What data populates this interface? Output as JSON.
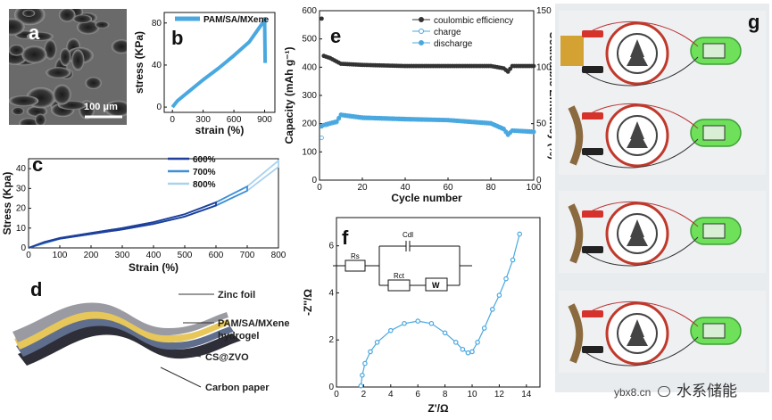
{
  "panels": {
    "a": {
      "label": "a",
      "scale_bar": "100 μm"
    },
    "b": {
      "label": "b"
    },
    "c": {
      "label": "c"
    },
    "d": {
      "label": "d",
      "layers": [
        "Zinc foil",
        "PAM/SA/MXene",
        "hydrogel",
        "CS@ZVO",
        "Carbon paper"
      ]
    },
    "e": {
      "label": "e"
    },
    "f": {
      "label": "f",
      "circuit": {
        "rs": "Rs",
        "cdl": "Cdl",
        "rct": "Rct",
        "w": "W"
      }
    },
    "g": {
      "label": "g",
      "watermark": "ybx8.cn",
      "wechat": "水系储能"
    }
  },
  "colors": {
    "blue": "#4aa8e0",
    "dark_blue": "#1f3f9a",
    "mid_blue": "#3e8fd6",
    "light_blue": "#a9d2ee",
    "grey": "#333333"
  },
  "chart_data": [
    {
      "id": "b",
      "type": "line",
      "title": "",
      "legend": [
        "PAM/SA/MXene"
      ],
      "xlabel": "strain (%)",
      "ylabel": "stress (KPa)",
      "xlim": [
        -80,
        1000
      ],
      "ylim": [
        -5,
        90
      ],
      "xticks": [
        0,
        300,
        600,
        900
      ],
      "yticks": [
        0,
        40,
        80
      ],
      "series": [
        {
          "name": "PAM/SA/MXene",
          "x": [
            0,
            50,
            150,
            300,
            450,
            600,
            750,
            880,
            900,
            905
          ],
          "y": [
            0,
            6,
            14,
            26,
            37,
            49,
            62,
            80,
            84,
            42
          ]
        }
      ]
    },
    {
      "id": "c",
      "type": "line",
      "xlabel": "Strain (%)",
      "ylabel": "Stress (Kpa)",
      "xlim": [
        0,
        800
      ],
      "ylim": [
        0,
        45
      ],
      "xticks": [
        0,
        100,
        200,
        300,
        400,
        500,
        600,
        700,
        800
      ],
      "yticks": [
        0,
        10,
        20,
        30,
        40
      ],
      "series": [
        {
          "name": "600%",
          "x": [
            0,
            50,
            100,
            200,
            300,
            400,
            500,
            600
          ],
          "y": [
            0,
            3,
            5,
            7.5,
            10,
            13,
            17,
            23
          ]
        },
        {
          "name": "700%",
          "x": [
            0,
            100,
            200,
            300,
            400,
            500,
            600,
            700
          ],
          "y": [
            0,
            5,
            7.5,
            10,
            13,
            17,
            23,
            31
          ]
        },
        {
          "name": "800%",
          "x": [
            0,
            100,
            200,
            300,
            400,
            500,
            600,
            700,
            800
          ],
          "y": [
            0,
            5,
            7.5,
            10,
            13,
            17,
            23,
            31,
            44
          ]
        }
      ]
    },
    {
      "id": "e",
      "type": "scatter",
      "xlabel": "Cycle number",
      "ylabel": "Capacity (mAh g⁻¹)",
      "y2label": "Coulombic Efficiency (%)",
      "xlim": [
        0,
        100
      ],
      "ylim": [
        0,
        600
      ],
      "y2lim": [
        0,
        150
      ],
      "xticks": [
        0,
        20,
        40,
        60,
        80,
        100
      ],
      "yticks": [
        0,
        100,
        200,
        300,
        400,
        500,
        600
      ],
      "y2ticks": [
        0,
        50,
        100,
        150
      ],
      "legend": [
        "coulombic efficiency",
        "charge",
        "discharge"
      ],
      "series": [
        {
          "name": "coulombic efficiency",
          "axis": "y2",
          "x": [
            1,
            2,
            5,
            10,
            20,
            40,
            60,
            80,
            86,
            88,
            90,
            100
          ],
          "y": [
            143,
            110,
            108,
            103,
            102,
            101,
            101,
            101,
            99,
            96,
            101,
            101
          ]
        },
        {
          "name": "charge",
          "axis": "y",
          "x": [
            1,
            2,
            3,
            5,
            8,
            10,
            20,
            40,
            60,
            80,
            86,
            88,
            90,
            100
          ],
          "y": [
            150,
            195,
            195,
            200,
            205,
            230,
            220,
            215,
            212,
            200,
            180,
            160,
            175,
            170
          ]
        },
        {
          "name": "discharge",
          "axis": "y",
          "x": [
            1,
            2,
            3,
            5,
            8,
            10,
            20,
            40,
            60,
            80,
            86,
            88,
            90,
            100
          ],
          "y": [
            190,
            195,
            198,
            202,
            208,
            232,
            222,
            217,
            213,
            202,
            182,
            162,
            176,
            172
          ]
        }
      ]
    },
    {
      "id": "f",
      "type": "line",
      "xlabel": "Z'/Ω",
      "ylabel": "-Z''/Ω",
      "xlim": [
        0,
        15
      ],
      "ylim": [
        0,
        7.2
      ],
      "xticks": [
        0,
        2,
        4,
        6,
        8,
        10,
        12,
        14
      ],
      "yticks": [
        0,
        2,
        4,
        6
      ],
      "series": [
        {
          "name": "Nyquist",
          "x": [
            1.8,
            1.9,
            2.1,
            2.5,
            3.0,
            4.0,
            5.0,
            6.0,
            7.0,
            8.0,
            8.8,
            9.3,
            9.7,
            10.0,
            10.4,
            10.9,
            11.5,
            12.0,
            12.5,
            13.0,
            13.5
          ],
          "y": [
            0.05,
            0.5,
            1.0,
            1.5,
            1.9,
            2.4,
            2.7,
            2.8,
            2.7,
            2.3,
            1.9,
            1.6,
            1.45,
            1.5,
            1.9,
            2.5,
            3.3,
            3.9,
            4.6,
            5.4,
            6.5
          ]
        }
      ]
    }
  ]
}
